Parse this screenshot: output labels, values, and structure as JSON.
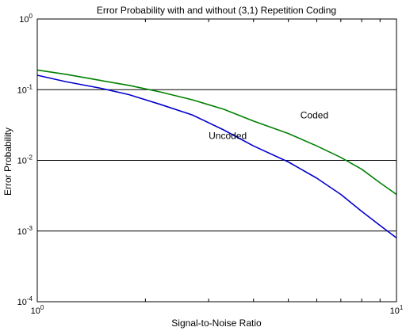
{
  "chart_data": {
    "type": "line",
    "title": "Error Probability with and without (3,1) Repetition Coding",
    "xlabel": "Signal-to-Noise Ratio",
    "ylabel": "Error Probability",
    "xscale": "log",
    "yscale": "log",
    "xlim": [
      1,
      10
    ],
    "ylim": [
      0.0001,
      1
    ],
    "grid": "horizontal lines at major y ticks",
    "x_ticks": [
      {
        "value": 1,
        "base": "10",
        "exp": "0"
      },
      {
        "value": 10,
        "base": "10",
        "exp": "1"
      }
    ],
    "y_ticks": [
      {
        "value": 1,
        "base": "10",
        "exp": "0"
      },
      {
        "value": 0.1,
        "base": "10",
        "exp": "-1"
      },
      {
        "value": 0.01,
        "base": "10",
        "exp": "-2"
      },
      {
        "value": 0.001,
        "base": "10",
        "exp": "-3"
      },
      {
        "value": 0.0001,
        "base": "10",
        "exp": "-4"
      }
    ],
    "series": [
      {
        "name": "Uncoded",
        "color": "#0000cc",
        "label_at": {
          "x": 3.0,
          "y": 0.02
        },
        "points": [
          [
            1.0,
            0.16
          ],
          [
            1.2,
            0.13
          ],
          [
            1.5,
            0.105
          ],
          [
            1.8,
            0.085
          ],
          [
            2.2,
            0.062
          ],
          [
            2.7,
            0.044
          ],
          [
            3.3,
            0.027
          ],
          [
            4.0,
            0.016
          ],
          [
            5.0,
            0.0095
          ],
          [
            6.0,
            0.0056
          ],
          [
            7.0,
            0.0033
          ],
          [
            8.0,
            0.0019
          ],
          [
            9.0,
            0.0012
          ],
          [
            10.0,
            0.0008
          ]
        ]
      },
      {
        "name": "Coded",
        "color": "#008000",
        "label_at": {
          "x": 5.4,
          "y": 0.039
        },
        "points": [
          [
            1.0,
            0.19
          ],
          [
            1.2,
            0.165
          ],
          [
            1.5,
            0.135
          ],
          [
            1.8,
            0.115
          ],
          [
            2.2,
            0.093
          ],
          [
            2.7,
            0.072
          ],
          [
            3.3,
            0.053
          ],
          [
            4.0,
            0.036
          ],
          [
            5.0,
            0.024
          ],
          [
            6.0,
            0.016
          ],
          [
            7.0,
            0.011
          ],
          [
            8.0,
            0.0075
          ],
          [
            9.0,
            0.0048
          ],
          [
            10.0,
            0.0033
          ]
        ]
      }
    ]
  }
}
